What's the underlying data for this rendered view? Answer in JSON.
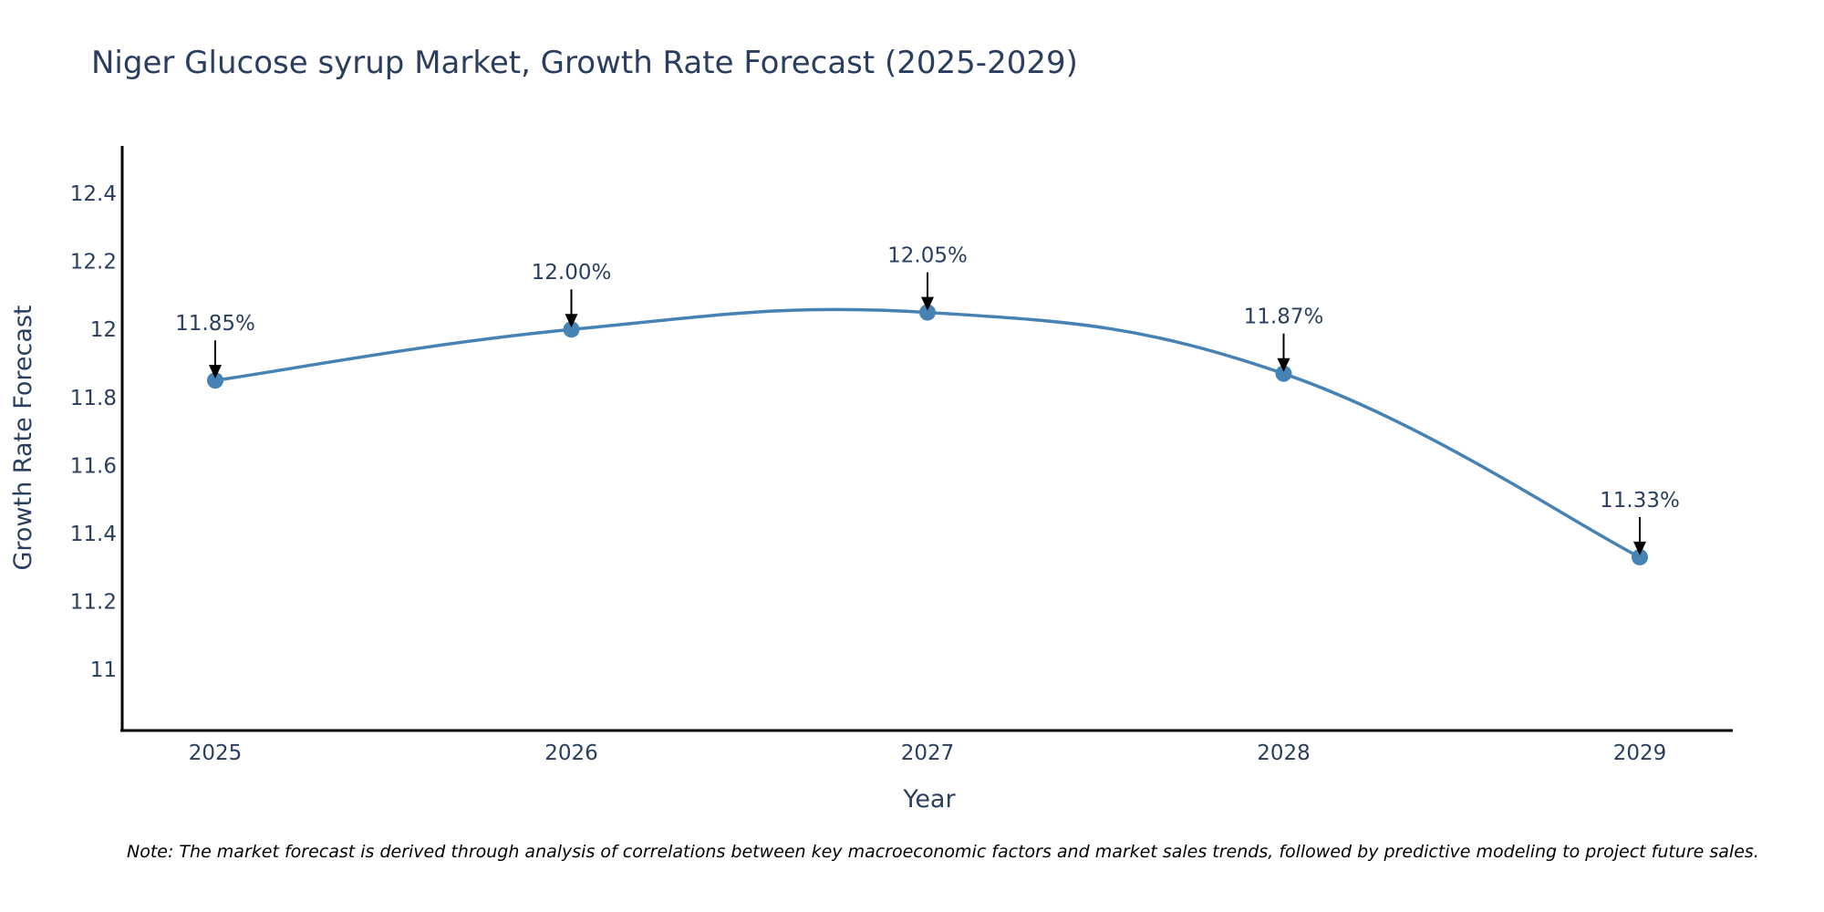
{
  "chart_data": {
    "type": "line",
    "title": "Niger Glucose syrup Market, Growth Rate Forecast (2025-2029)",
    "xlabel": "Year",
    "ylabel": "Growth Rate Forecast",
    "categories": [
      "2025",
      "2026",
      "2027",
      "2028",
      "2029"
    ],
    "values": [
      11.85,
      12.0,
      12.05,
      11.87,
      11.33
    ],
    "data_labels": [
      "11.85%",
      "12.00%",
      "12.05%",
      "11.87%",
      "11.33%"
    ],
    "y_ticks": [
      11,
      11.2,
      11.4,
      11.6,
      11.8,
      12,
      12.2,
      12.4
    ],
    "y_tick_labels": [
      "11",
      "11.2",
      "11.4",
      "11.6",
      "11.8",
      "12",
      "12.2",
      "12.4"
    ],
    "ylim": [
      10.82,
      12.54
    ],
    "grid": false,
    "line_color": "#4682b4",
    "note": "Note: The market forecast is derived through analysis of correlations between key macroeconomic factors and market sales trends, followed by predictive modeling to project future sales."
  }
}
